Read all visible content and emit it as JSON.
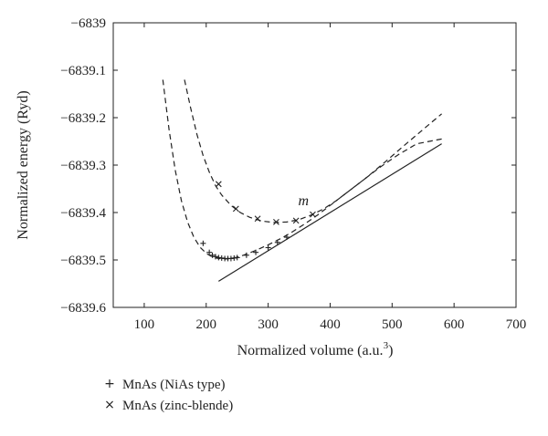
{
  "chart_data": {
    "type": "line",
    "xlabel": "Normalized volume (a.u.",
    "xlabel_sup": "3",
    "xlabel_close": ")",
    "ylabel": "Normalized energy (Ryd)",
    "xlim": [
      50,
      700
    ],
    "ylim": [
      -6839.6,
      -6839.0
    ],
    "xticks": [
      100,
      200,
      300,
      400,
      500,
      600,
      700
    ],
    "yticks": [
      -6839,
      -6839.1,
      -6839.2,
      -6839.3,
      -6839.4,
      -6839.5,
      -6839.6
    ],
    "xtick_labels": [
      "100",
      "200",
      "300",
      "400",
      "500",
      "600",
      "700"
    ],
    "ytick_labels": [
      "−6839",
      "−6839.1",
      "−6839.2",
      "−6839.3",
      "−6839.4",
      "−6839.5",
      "−6839.6"
    ],
    "grid": false,
    "legend_position": "below-left",
    "annotation": {
      "text": "m",
      "x": 357,
      "y": -6839.385
    },
    "series": [
      {
        "name": "MnAs (NiAs type)",
        "marker": "+",
        "style": "dashed",
        "fit": {
          "x": [
            130,
            140,
            150,
            160,
            170,
            180,
            190,
            200,
            210,
            220,
            230,
            240,
            250,
            260,
            280,
            300,
            320,
            340,
            360,
            380,
            400,
            420,
            450,
            480,
            510,
            540,
            580
          ],
          "y": [
            -6839.12,
            -6839.225,
            -6839.31,
            -6839.375,
            -6839.42,
            -6839.452,
            -6839.473,
            -6839.486,
            -6839.494,
            -6839.497,
            -6839.498,
            -6839.497,
            -6839.494,
            -6839.49,
            -6839.48,
            -6839.468,
            -6839.455,
            -6839.44,
            -6839.423,
            -6839.405,
            -6839.385,
            -6839.365,
            -6839.335,
            -6839.305,
            -6839.278,
            -6839.255,
            -6839.245
          ]
        },
        "points": {
          "x": [
            195,
            205,
            210,
            215,
            220,
            225,
            230,
            235,
            240,
            245,
            250,
            265,
            280,
            300,
            315,
            330
          ],
          "y": [
            -6839.465,
            -6839.484,
            -6839.49,
            -6839.493,
            -6839.495,
            -6839.496,
            -6839.497,
            -6839.497,
            -6839.497,
            -6839.496,
            -6839.495,
            -6839.49,
            -6839.484,
            -6839.474,
            -6839.463,
            -6839.452
          ]
        }
      },
      {
        "name": "MnAs (zinc-blende)",
        "marker": "×",
        "style": "dashed",
        "fit": {
          "x": [
            165,
            175,
            185,
            195,
            205,
            215,
            225,
            240,
            255,
            270,
            290,
            310,
            330,
            350,
            370,
            390,
            410,
            430,
            460,
            490,
            520,
            550,
            580
          ],
          "y": [
            -6839.12,
            -6839.18,
            -6839.235,
            -6839.28,
            -6839.315,
            -6839.343,
            -6839.363,
            -6839.385,
            -6839.4,
            -6839.41,
            -6839.418,
            -6839.421,
            -6839.42,
            -6839.415,
            -6839.405,
            -6839.392,
            -6839.375,
            -6839.355,
            -6839.325,
            -6839.292,
            -6839.258,
            -6839.225,
            -6839.192
          ]
        },
        "points": {
          "x": [
            220,
            248,
            283,
            313,
            345,
            372
          ],
          "y": [
            -6839.34,
            -6839.392,
            -6839.413,
            -6839.42,
            -6839.417,
            -6839.404
          ]
        }
      },
      {
        "name": "",
        "marker": "",
        "style": "solid",
        "fit": {
          "x": [
            220,
            580
          ],
          "y": [
            -6839.545,
            -6839.255
          ]
        },
        "points": {
          "x": [],
          "y": []
        }
      }
    ]
  }
}
